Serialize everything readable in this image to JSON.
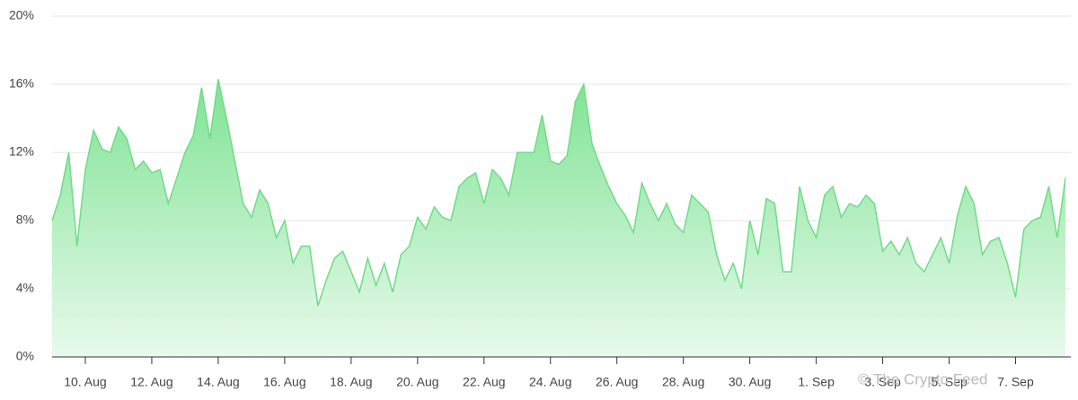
{
  "chart_data": {
    "type": "area",
    "categories": [
      null,
      null,
      null,
      null,
      "10. Aug",
      null,
      null,
      null,
      null,
      null,
      null,
      null,
      "12. Aug",
      null,
      null,
      null,
      null,
      null,
      null,
      null,
      "14. Aug",
      null,
      null,
      null,
      null,
      null,
      null,
      null,
      "16. Aug",
      null,
      null,
      null,
      null,
      null,
      null,
      null,
      "18. Aug",
      null,
      null,
      null,
      null,
      null,
      null,
      null,
      "20. Aug",
      null,
      null,
      null,
      null,
      null,
      null,
      null,
      "22. Aug",
      null,
      null,
      null,
      null,
      null,
      null,
      null,
      "24. Aug",
      null,
      null,
      null,
      null,
      null,
      null,
      null,
      "26. Aug",
      null,
      null,
      null,
      null,
      null,
      null,
      null,
      "28. Aug",
      null,
      null,
      null,
      null,
      null,
      null,
      null,
      "30. Aug",
      null,
      null,
      null,
      null,
      null,
      null,
      null,
      "1. Sep",
      null,
      null,
      null,
      null,
      null,
      null,
      null,
      "3. Sep",
      null,
      null,
      null,
      null,
      null,
      null,
      null,
      "5. Sep",
      null,
      null,
      null,
      null,
      null,
      null,
      null,
      "7. Sep",
      null,
      null,
      null,
      null,
      null,
      null
    ],
    "values": [
      8,
      9.5,
      12,
      6.5,
      11,
      13.3,
      12.2,
      12,
      13.5,
      12.8,
      11,
      11.5,
      10.8,
      11,
      9,
      10.5,
      12,
      13,
      15.8,
      12.8,
      16.3,
      14,
      11.5,
      9,
      8.2,
      9.8,
      9,
      7,
      8,
      5.5,
      6.5,
      6.5,
      3,
      4.5,
      5.8,
      6.2,
      5,
      3.8,
      5.8,
      4.2,
      5.5,
      3.8,
      6,
      6.5,
      8.2,
      7.5,
      8.8,
      8.2,
      8,
      10,
      10.5,
      10.8,
      9,
      11,
      10.5,
      9.5,
      12,
      12,
      12,
      14.2,
      11.5,
      11.3,
      11.8,
      15,
      16,
      12.5,
      11.2,
      10,
      9,
      8.3,
      7.3,
      10.2,
      9,
      8,
      9,
      7.8,
      7.3,
      9.5,
      9,
      8.5,
      6,
      4.5,
      5.5,
      4,
      8,
      6,
      9.3,
      9,
      5,
      5,
      10,
      8,
      7,
      9.5,
      10,
      8.2,
      9,
      8.8,
      9.5,
      9,
      6.2,
      6.8,
      6,
      7,
      5.5,
      5,
      6,
      7,
      5.5,
      8.3,
      10,
      9,
      6,
      6.8,
      7,
      5.5,
      3.5,
      7.5,
      8,
      8.2,
      10,
      7,
      10.5
    ],
    "color": "#6fdc86",
    "ylim": [
      0,
      20
    ],
    "yticks": [
      {
        "value": 0,
        "label": "0%"
      },
      {
        "value": 4,
        "label": "4%"
      },
      {
        "value": 8,
        "label": "8%"
      },
      {
        "value": 12,
        "label": "12%"
      },
      {
        "value": 16,
        "label": "16%"
      },
      {
        "value": 20,
        "label": "20%"
      }
    ],
    "grid": true,
    "watermark": "© The Crypto Feed"
  }
}
